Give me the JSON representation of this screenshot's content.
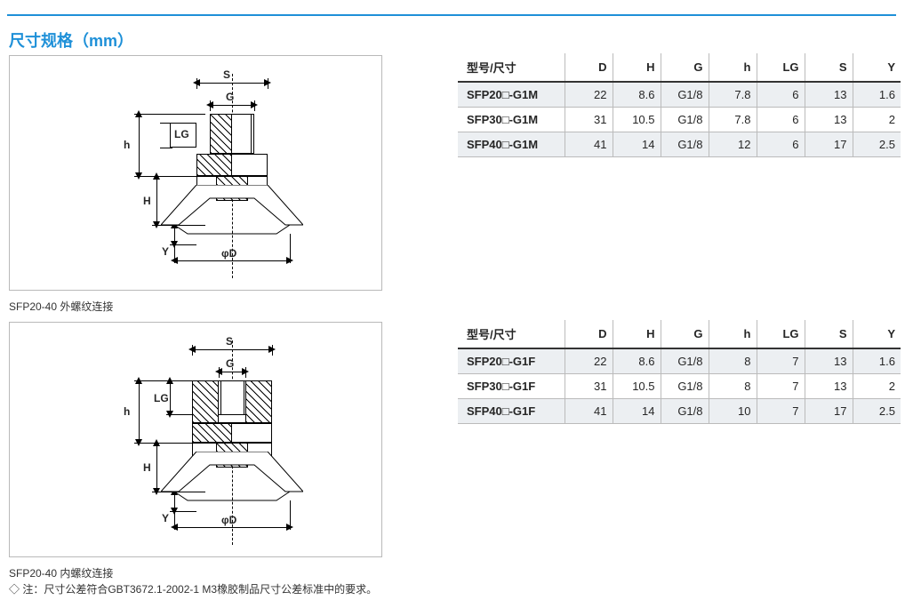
{
  "header": {
    "title": "尺寸规格（mm）"
  },
  "figures": {
    "fig1_caption": "SFP20-40 外螺纹连接",
    "fig2_caption": "SFP20-40 内螺纹连接",
    "labels": {
      "S": "S",
      "G": "G",
      "LG": "LG",
      "h": "h",
      "H": "H",
      "Y": "Y",
      "phiD": "φD"
    }
  },
  "table_common": {
    "columns": [
      "型号/尺寸",
      "D",
      "H",
      "G",
      "h",
      "LG",
      "S",
      "Y"
    ]
  },
  "table1": {
    "rows": [
      [
        "SFP20□-G1M",
        "22",
        "8.6",
        "G1/8",
        "7.8",
        "6",
        "13",
        "1.6"
      ],
      [
        "SFP30□-G1M",
        "31",
        "10.5",
        "G1/8",
        "7.8",
        "6",
        "13",
        "2"
      ],
      [
        "SFP40□-G1M",
        "41",
        "14",
        "G1/8",
        "12",
        "6",
        "17",
        "2.5"
      ]
    ]
  },
  "table2": {
    "rows": [
      [
        "SFP20□-G1F",
        "22",
        "8.6",
        "G1/8",
        "8",
        "7",
        "13",
        "1.6"
      ],
      [
        "SFP30□-G1F",
        "31",
        "10.5",
        "G1/8",
        "8",
        "7",
        "13",
        "2"
      ],
      [
        "SFP40□-G1F",
        "41",
        "14",
        "G1/8",
        "10",
        "7",
        "17",
        "2.5"
      ]
    ]
  },
  "note": "◇ 注：尺寸公差符合GBT3672.1-2002-1 M3橡胶制品尺寸公差标准中的要求。",
  "style": {
    "accent_color": "#1e90d8",
    "row_alt_bg": "#eceff2",
    "border_color": "#bbbbbb",
    "header_border": "#333333",
    "title_fontsize": 18,
    "body_fontsize": 13,
    "caption_fontsize": 12
  }
}
